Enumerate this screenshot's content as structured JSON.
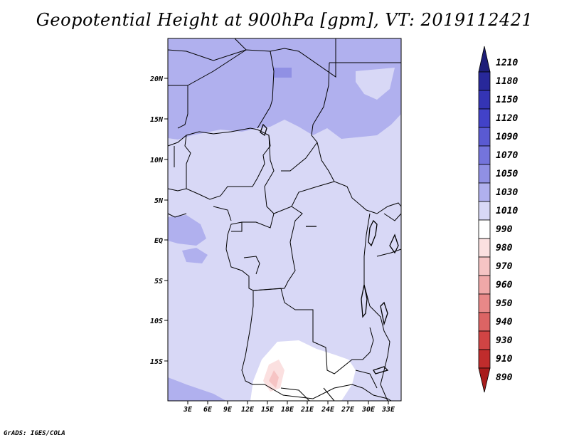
{
  "title": "Geopotential Height at 900hPa [gpm], VT: 2019112421",
  "footer": "GrADS: IGES/COLA",
  "map": {
    "lat_ticks": [
      "20N",
      "15N",
      "10N",
      "5N",
      "EQ",
      "5S",
      "10S",
      "15S"
    ],
    "lon_ticks": [
      "3E",
      "6E",
      "9E",
      "12E",
      "15E",
      "18E",
      "21E",
      "24E",
      "27E",
      "30E",
      "33E"
    ]
  },
  "colorbar": {
    "levels": [
      "1210",
      "1180",
      "1150",
      "1120",
      "1090",
      "1070",
      "1050",
      "1030",
      "1010",
      "990",
      "980",
      "970",
      "960",
      "950",
      "940",
      "930",
      "910",
      "890"
    ],
    "colors": [
      "#1e1e78",
      "#28289a",
      "#3434b4",
      "#4242c8",
      "#5a5ad2",
      "#7474dc",
      "#9090e4",
      "#b0b0ee",
      "#d8d8f6",
      "#ffffff",
      "#fbe0e0",
      "#f6c4c4",
      "#f0a8a8",
      "#e88888",
      "#dc6464",
      "#d04444",
      "#c02c2c",
      "#a81c1c"
    ]
  }
}
